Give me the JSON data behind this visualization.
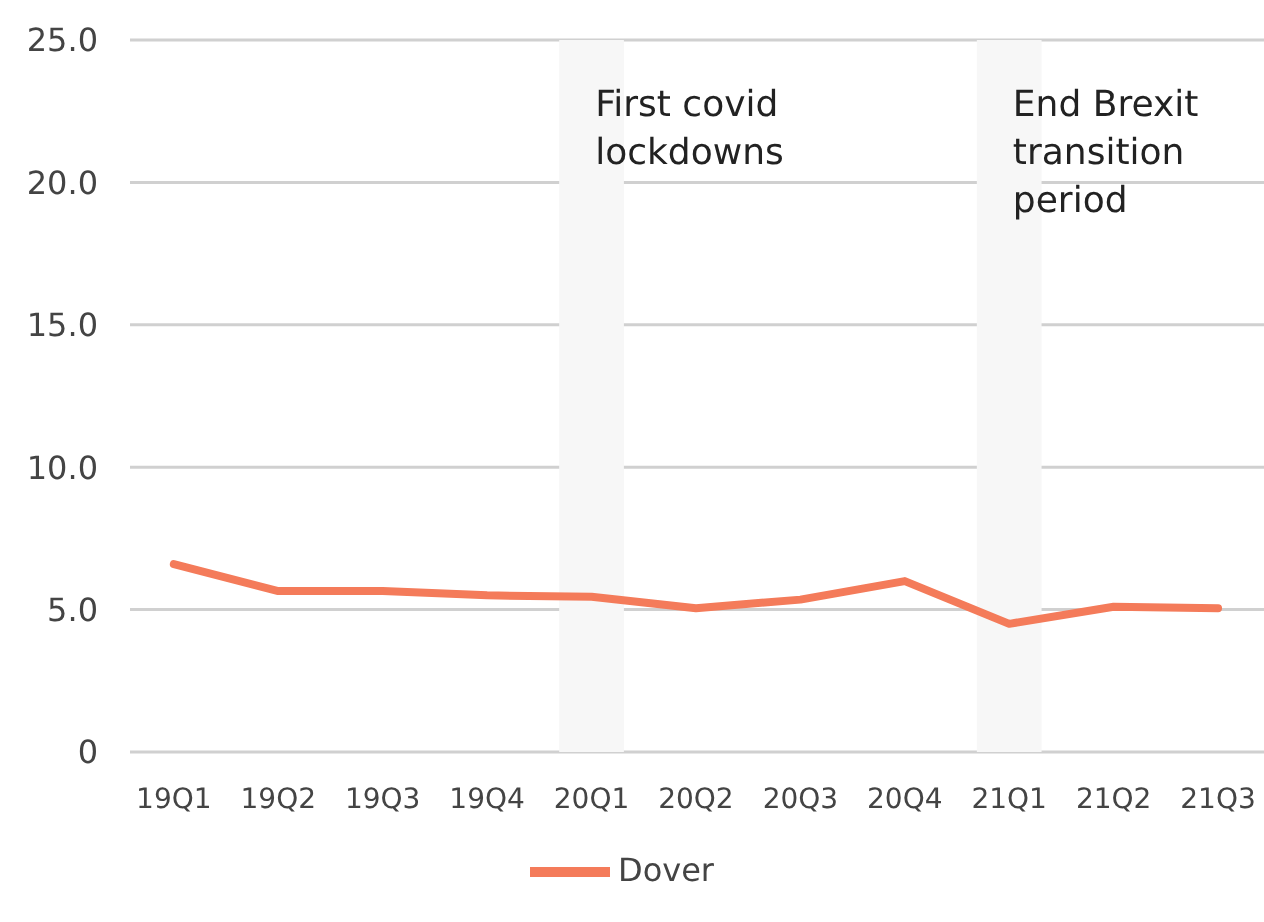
{
  "chart_data": {
    "type": "line",
    "categories": [
      "19Q1",
      "19Q2",
      "19Q3",
      "19Q4",
      "20Q1",
      "20Q2",
      "20Q3",
      "20Q4",
      "21Q1",
      "21Q2",
      "21Q3"
    ],
    "series": [
      {
        "name": "Dover",
        "color": "#f47b5a",
        "values": [
          6.6,
          5.65,
          5.65,
          5.5,
          5.45,
          5.05,
          5.35,
          6.0,
          4.5,
          5.1,
          5.05
        ]
      }
    ],
    "ylim": [
      0,
      25
    ],
    "yticks": [
      0,
      {
        "value": 5,
        "label": "5.0"
      },
      {
        "value": 10,
        "label": "10.0"
      },
      {
        "value": 15,
        "label": "15.0"
      },
      {
        "value": 20,
        "label": "20.0"
      },
      {
        "value": 25,
        "label": "25.0"
      }
    ],
    "grid": "y",
    "legend": "bottom",
    "marker": "none",
    "line_style": "solid",
    "bands": [
      {
        "axis": "x",
        "from": "20Q1",
        "to": "20Q1",
        "label": "First covid lockdowns",
        "color": "#f7f7f7"
      },
      {
        "axis": "x",
        "from": "21Q1",
        "to": "21Q1",
        "label": "End Brexit transition period",
        "color": "#f7f7f7"
      }
    ]
  }
}
